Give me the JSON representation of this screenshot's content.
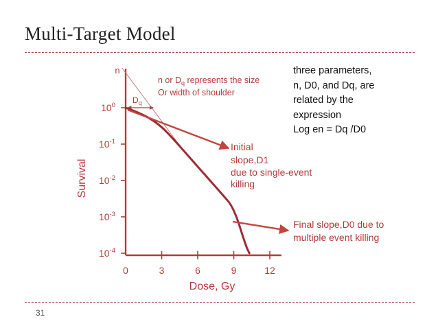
{
  "slide": {
    "title": "Multi-Target Model",
    "number": "31",
    "note_lines": [
      "three parameters,",
      "n, D0, and Dq, are",
      "related by the",
      "expression",
      "Log en = Dq /D0"
    ]
  },
  "colors": {
    "accent": "#b33a3a",
    "curve": "#9e2a33",
    "arrow": "#c0453e",
    "thin_line": "#c86a6a",
    "text": "#222222"
  },
  "chart_data": {
    "type": "line",
    "xlabel": "Dose, Gy",
    "ylabel": "Survival",
    "x_ticks": [
      0,
      3,
      6,
      9,
      12
    ],
    "xlim": [
      0,
      12
    ],
    "y_scale": "log",
    "y_ticks": [
      {
        "base": "10",
        "exp": "0",
        "value": 1
      },
      {
        "base": "10",
        "exp": "-1",
        "value": 0.1
      },
      {
        "base": "10",
        "exp": "-2",
        "value": 0.01
      },
      {
        "base": "10",
        "exp": "-3",
        "value": 0.001
      },
      {
        "base": "10",
        "exp": "-4",
        "value": 0.0001
      }
    ],
    "ylim": [
      0.0001,
      1
    ],
    "series": [
      {
        "values_x": [
          0,
          1,
          2,
          3,
          4,
          5,
          6,
          7,
          8,
          9,
          10,
          10.3
        ],
        "values_y": [
          1,
          0.75,
          0.52,
          0.3,
          0.135,
          0.057,
          0.024,
          0.0102,
          0.0043,
          0.0018,
          0.00016,
          0.0001
        ]
      }
    ],
    "extrapolation_line": {
      "x": [
        -0.3,
        4.5
      ],
      "n_label": "n",
      "intercept_y": 5.5
    },
    "dq_marker": {
      "label_base": "D",
      "label_sub": "q",
      "x": 2.3
    },
    "annotations": {
      "shoulder": {
        "line1_pre": "n or D",
        "line1_sub": "q",
        "line1_post": " represents the size",
        "line2": "Or width of shoulder"
      },
      "initial": [
        "Initial",
        "slope,D1",
        "due to single-event",
        "killing"
      ],
      "final": [
        "Final slope,D0 due to",
        "multiple event killing"
      ]
    }
  }
}
